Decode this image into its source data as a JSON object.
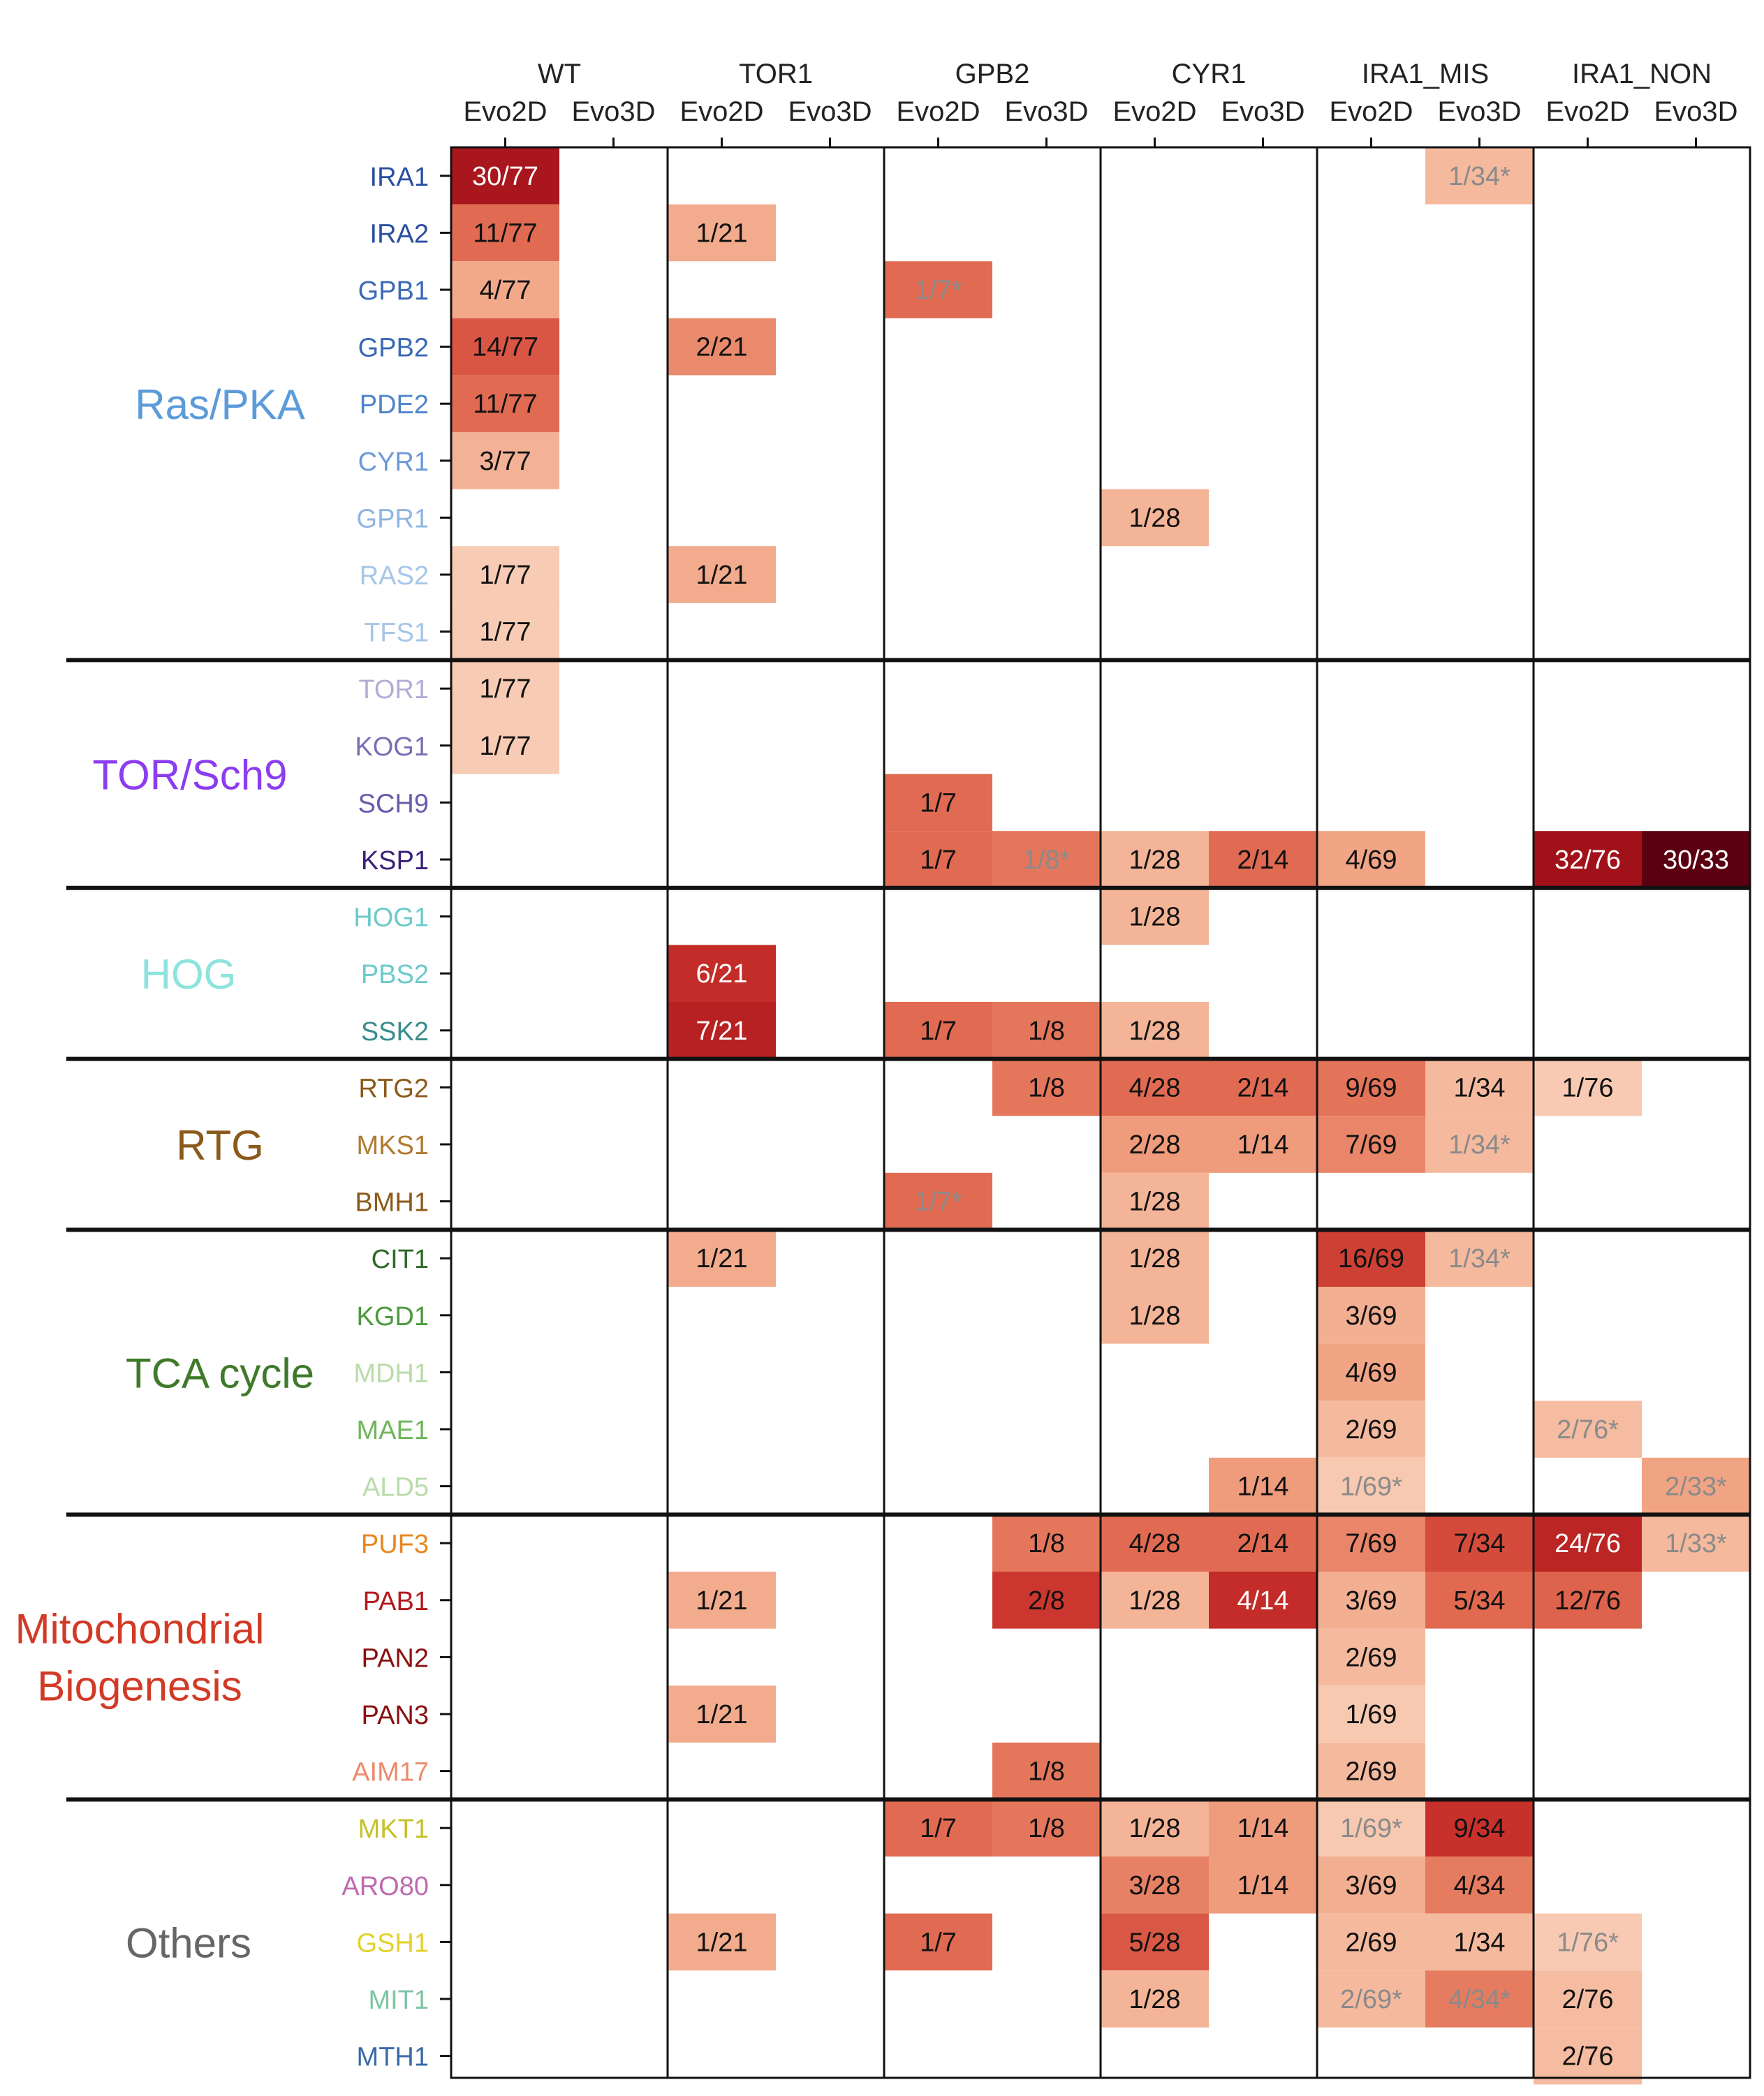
{
  "chart_data": {
    "type": "heatmap",
    "columns": [
      {
        "group": "WT",
        "sub": [
          "Evo2D",
          "Evo3D"
        ]
      },
      {
        "group": "TOR1",
        "sub": [
          "Evo2D",
          "Evo3D"
        ]
      },
      {
        "group": "GPB2",
        "sub": [
          "Evo2D",
          "Evo3D"
        ]
      },
      {
        "group": "CYR1",
        "sub": [
          "Evo2D",
          "Evo3D"
        ]
      },
      {
        "group": "IRA1_MIS",
        "sub": [
          "Evo2D",
          "Evo3D"
        ]
      },
      {
        "group": "IRA1_NON",
        "sub": [
          "Evo2D",
          "Evo3D"
        ]
      }
    ],
    "pathways": [
      {
        "name": "Ras/PKA",
        "color": "#5b9bd9",
        "genes": [
          "IRA1",
          "IRA2",
          "GPB1",
          "GPB2",
          "PDE2",
          "CYR1",
          "GPR1",
          "RAS2",
          "TFS1"
        ]
      },
      {
        "name": "TOR/Sch9",
        "color": "#8b3df0",
        "genes": [
          "TOR1",
          "KOG1",
          "SCH9",
          "KSP1"
        ]
      },
      {
        "name": "HOG",
        "color": "#8de3dd",
        "genes": [
          "HOG1",
          "PBS2",
          "SSK2"
        ]
      },
      {
        "name": "RTG",
        "color": "#8b5a1a",
        "genes": [
          "RTG2",
          "MKS1",
          "BMH1"
        ]
      },
      {
        "name": "TCA cycle",
        "color": "#3f7a2a",
        "genes": [
          "CIT1",
          "KGD1",
          "MDH1",
          "MAE1",
          "ALD5"
        ]
      },
      {
        "name": "Mitochondrial Biogenesis",
        "color": "#d23a26",
        "genes": [
          "PUF3",
          "PAB1",
          "PAN2",
          "PAN3",
          "AIM17"
        ]
      },
      {
        "name": "Others",
        "color": "#666666",
        "genes": [
          "MKT1",
          "ARO80",
          "GSH1",
          "MIT1",
          "MTH1"
        ]
      }
    ],
    "gene_colors": {
      "IRA1": "#2a4fa0",
      "IRA2": "#2a4fa0",
      "GPB1": "#3a68b8",
      "GPB2": "#3a68b8",
      "PDE2": "#4f84cc",
      "CYR1": "#6a9ad8",
      "GPR1": "#8fb5e3",
      "RAS2": "#a6c6e8",
      "TFS1": "#a6c6e8",
      "TOR1": "#b6abd6",
      "KOG1": "#7a6eb3",
      "SCH9": "#6a5aad",
      "KSP1": "#3a1f7a",
      "HOG1": "#6ccaca",
      "PBS2": "#6ccaca",
      "SSK2": "#3a8c8c",
      "RTG2": "#8b5a1a",
      "MKS1": "#b07a30",
      "BMH1": "#8b5a1a",
      "CIT1": "#2f6a2a",
      "KGD1": "#4a9a3a",
      "MDH1": "#b9dca8",
      "MAE1": "#6fb55a",
      "ALD5": "#b9dca8",
      "PUF3": "#e8861f",
      "PAB1": "#b3181c",
      "PAN2": "#8a1010",
      "PAN3": "#8a1010",
      "AIM17": "#ec8a6c",
      "MKT1": "#c6c12a",
      "ARO80": "#c06ab0",
      "GSH1": "#e2d22a",
      "MIT1": "#7fc4a4",
      "MTH1": "#3a6aa8"
    },
    "cells": [
      {
        "gene": "IRA1",
        "col": 0,
        "label": "30/77"
      },
      {
        "gene": "IRA1",
        "col": 9,
        "label": "1/34*"
      },
      {
        "gene": "IRA2",
        "col": 0,
        "label": "11/77"
      },
      {
        "gene": "IRA2",
        "col": 2,
        "label": "1/21"
      },
      {
        "gene": "GPB1",
        "col": 0,
        "label": "4/77"
      },
      {
        "gene": "GPB1",
        "col": 4,
        "label": "1/7*"
      },
      {
        "gene": "GPB2",
        "col": 0,
        "label": "14/77"
      },
      {
        "gene": "GPB2",
        "col": 2,
        "label": "2/21"
      },
      {
        "gene": "PDE2",
        "col": 0,
        "label": "11/77"
      },
      {
        "gene": "CYR1",
        "col": 0,
        "label": "3/77"
      },
      {
        "gene": "GPR1",
        "col": 6,
        "label": "1/28"
      },
      {
        "gene": "RAS2",
        "col": 0,
        "label": "1/77"
      },
      {
        "gene": "RAS2",
        "col": 2,
        "label": "1/21"
      },
      {
        "gene": "TFS1",
        "col": 0,
        "label": "1/77"
      },
      {
        "gene": "TOR1",
        "col": 0,
        "label": "1/77"
      },
      {
        "gene": "KOG1",
        "col": 0,
        "label": "1/77"
      },
      {
        "gene": "SCH9",
        "col": 4,
        "label": "1/7"
      },
      {
        "gene": "KSP1",
        "col": 4,
        "label": "1/7"
      },
      {
        "gene": "KSP1",
        "col": 5,
        "label": "1/8*"
      },
      {
        "gene": "KSP1",
        "col": 6,
        "label": "1/28"
      },
      {
        "gene": "KSP1",
        "col": 7,
        "label": "2/14"
      },
      {
        "gene": "KSP1",
        "col": 8,
        "label": "4/69"
      },
      {
        "gene": "KSP1",
        "col": 10,
        "label": "32/76"
      },
      {
        "gene": "KSP1",
        "col": 11,
        "label": "30/33"
      },
      {
        "gene": "HOG1",
        "col": 6,
        "label": "1/28"
      },
      {
        "gene": "PBS2",
        "col": 2,
        "label": "6/21"
      },
      {
        "gene": "SSK2",
        "col": 2,
        "label": "7/21"
      },
      {
        "gene": "SSK2",
        "col": 4,
        "label": "1/7"
      },
      {
        "gene": "SSK2",
        "col": 5,
        "label": "1/8"
      },
      {
        "gene": "SSK2",
        "col": 6,
        "label": "1/28"
      },
      {
        "gene": "RTG2",
        "col": 5,
        "label": "1/8"
      },
      {
        "gene": "RTG2",
        "col": 6,
        "label": "4/28"
      },
      {
        "gene": "RTG2",
        "col": 7,
        "label": "2/14"
      },
      {
        "gene": "RTG2",
        "col": 8,
        "label": "9/69"
      },
      {
        "gene": "RTG2",
        "col": 9,
        "label": "1/34"
      },
      {
        "gene": "RTG2",
        "col": 10,
        "label": "1/76"
      },
      {
        "gene": "MKS1",
        "col": 6,
        "label": "2/28"
      },
      {
        "gene": "MKS1",
        "col": 7,
        "label": "1/14"
      },
      {
        "gene": "MKS1",
        "col": 8,
        "label": "7/69"
      },
      {
        "gene": "MKS1",
        "col": 9,
        "label": "1/34*"
      },
      {
        "gene": "BMH1",
        "col": 4,
        "label": "1/7*"
      },
      {
        "gene": "BMH1",
        "col": 6,
        "label": "1/28"
      },
      {
        "gene": "CIT1",
        "col": 2,
        "label": "1/21"
      },
      {
        "gene": "CIT1",
        "col": 6,
        "label": "1/28"
      },
      {
        "gene": "CIT1",
        "col": 8,
        "label": "16/69"
      },
      {
        "gene": "CIT1",
        "col": 9,
        "label": "1/34*"
      },
      {
        "gene": "KGD1",
        "col": 6,
        "label": "1/28"
      },
      {
        "gene": "KGD1",
        "col": 8,
        "label": "3/69"
      },
      {
        "gene": "MDH1",
        "col": 8,
        "label": "4/69"
      },
      {
        "gene": "MAE1",
        "col": 8,
        "label": "2/69"
      },
      {
        "gene": "MAE1",
        "col": 10,
        "label": "2/76*"
      },
      {
        "gene": "ALD5",
        "col": 7,
        "label": "1/14"
      },
      {
        "gene": "ALD5",
        "col": 8,
        "label": "1/69*"
      },
      {
        "gene": "ALD5",
        "col": 11,
        "label": "2/33*"
      },
      {
        "gene": "PUF3",
        "col": 5,
        "label": "1/8"
      },
      {
        "gene": "PUF3",
        "col": 6,
        "label": "4/28"
      },
      {
        "gene": "PUF3",
        "col": 7,
        "label": "2/14"
      },
      {
        "gene": "PUF3",
        "col": 8,
        "label": "7/69"
      },
      {
        "gene": "PUF3",
        "col": 9,
        "label": "7/34"
      },
      {
        "gene": "PUF3",
        "col": 10,
        "label": "24/76"
      },
      {
        "gene": "PUF3",
        "col": 11,
        "label": "1/33*"
      },
      {
        "gene": "PAB1",
        "col": 2,
        "label": "1/21"
      },
      {
        "gene": "PAB1",
        "col": 5,
        "label": "2/8"
      },
      {
        "gene": "PAB1",
        "col": 6,
        "label": "1/28"
      },
      {
        "gene": "PAB1",
        "col": 7,
        "label": "4/14"
      },
      {
        "gene": "PAB1",
        "col": 8,
        "label": "3/69"
      },
      {
        "gene": "PAB1",
        "col": 9,
        "label": "5/34"
      },
      {
        "gene": "PAB1",
        "col": 10,
        "label": "12/76"
      },
      {
        "gene": "PAN2",
        "col": 8,
        "label": "2/69"
      },
      {
        "gene": "PAN3",
        "col": 2,
        "label": "1/21"
      },
      {
        "gene": "PAN3",
        "col": 8,
        "label": "1/69"
      },
      {
        "gene": "AIM17",
        "col": 5,
        "label": "1/8"
      },
      {
        "gene": "AIM17",
        "col": 8,
        "label": "2/69"
      },
      {
        "gene": "MKT1",
        "col": 4,
        "label": "1/7"
      },
      {
        "gene": "MKT1",
        "col": 5,
        "label": "1/8"
      },
      {
        "gene": "MKT1",
        "col": 6,
        "label": "1/28"
      },
      {
        "gene": "MKT1",
        "col": 7,
        "label": "1/14"
      },
      {
        "gene": "MKT1",
        "col": 8,
        "label": "1/69*"
      },
      {
        "gene": "MKT1",
        "col": 9,
        "label": "9/34"
      },
      {
        "gene": "ARO80",
        "col": 6,
        "label": "3/28"
      },
      {
        "gene": "ARO80",
        "col": 7,
        "label": "1/14"
      },
      {
        "gene": "ARO80",
        "col": 8,
        "label": "3/69"
      },
      {
        "gene": "ARO80",
        "col": 9,
        "label": "4/34"
      },
      {
        "gene": "GSH1",
        "col": 2,
        "label": "1/21"
      },
      {
        "gene": "GSH1",
        "col": 4,
        "label": "1/7"
      },
      {
        "gene": "GSH1",
        "col": 6,
        "label": "5/28"
      },
      {
        "gene": "GSH1",
        "col": 8,
        "label": "2/69"
      },
      {
        "gene": "GSH1",
        "col": 9,
        "label": "1/34"
      },
      {
        "gene": "GSH1",
        "col": 10,
        "label": "1/76*"
      },
      {
        "gene": "MIT1",
        "col": 6,
        "label": "1/28"
      },
      {
        "gene": "MIT1",
        "col": 8,
        "label": "2/69*"
      },
      {
        "gene": "MIT1",
        "col": 9,
        "label": "4/34*"
      },
      {
        "gene": "MIT1",
        "col": 10,
        "label": "2/76"
      },
      {
        "gene": "MTH1",
        "col": 10,
        "label": "2/76"
      }
    ],
    "colormap": [
      "#fdeee6",
      "#f7c6ad",
      "#f0a07f",
      "#e0674f",
      "#c8302a",
      "#a3111a",
      "#5a0010"
    ],
    "grid": false,
    "legend": "none"
  }
}
